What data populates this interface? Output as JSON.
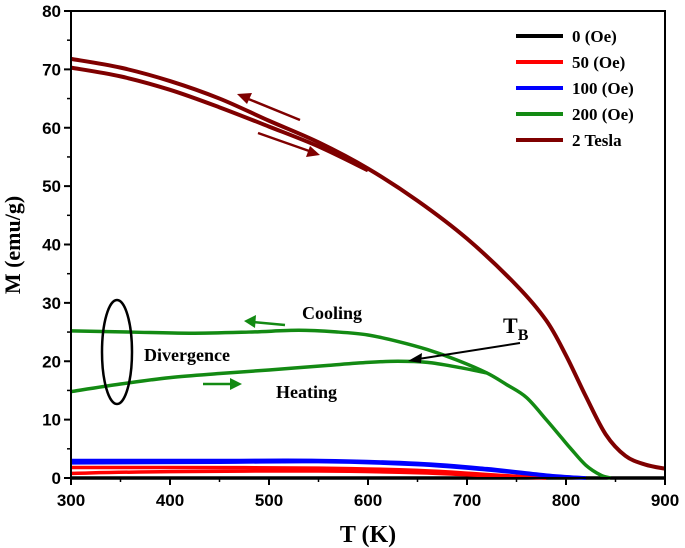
{
  "chart_data": {
    "type": "line",
    "xlabel": "T (K)",
    "ylabel": "M (emu/g)",
    "xlim": [
      300,
      900
    ],
    "ylim": [
      0,
      80
    ],
    "xticks": [
      300,
      400,
      500,
      600,
      700,
      800,
      900
    ],
    "yticks": [
      0,
      10,
      20,
      30,
      40,
      50,
      60,
      70,
      80
    ],
    "grid": false,
    "legend_position": "top-right",
    "series": [
      {
        "name": "0 (Oe)",
        "color": "#000000",
        "curves": [
          {
            "x": [
              300,
              900
            ],
            "y": [
              0,
              0
            ]
          }
        ]
      },
      {
        "name": "50 (Oe)",
        "color": "#ff0000",
        "curves": [
          {
            "x": [
              300,
              400,
              550,
              650,
              720,
              780
            ],
            "y": [
              1.8,
              1.8,
              1.7,
              1.3,
              0.6,
              0
            ]
          },
          {
            "x": [
              300,
              400,
              550,
              650,
              720,
              780
            ],
            "y": [
              0.8,
              1.1,
              1.2,
              0.9,
              0.4,
              0
            ]
          }
        ]
      },
      {
        "name": "100 (Oe)",
        "color": "#0000ff",
        "curves": [
          {
            "x": [
              300,
              450,
              550,
              650,
              720,
              780,
              820
            ],
            "y": [
              3.0,
              3.0,
              3.0,
              2.5,
              1.6,
              0.5,
              0
            ]
          },
          {
            "x": [
              300,
              450,
              550,
              650,
              720,
              780,
              820
            ],
            "y": [
              2.6,
              2.7,
              2.8,
              2.3,
              1.4,
              0.4,
              0
            ]
          }
        ]
      },
      {
        "name": "200 (Oe)",
        "color": "#138a13",
        "curves": [
          {
            "x": [
              300,
              360,
              420,
              480,
              530,
              570,
              600,
              630,
              660,
              690,
              720,
              740,
              760,
              780,
              795,
              805,
              820,
              835,
              845
            ],
            "y": [
              25.2,
              25.0,
              24.8,
              25.0,
              25.3,
              25.0,
              24.5,
              23.4,
              22.0,
              20.2,
              18.0,
              16.0,
              13.8,
              10.0,
              7.0,
              5.0,
              2.2,
              0.5,
              0
            ]
          },
          {
            "x": [
              300,
              350,
              400,
              450,
              500,
              560,
              600,
              630,
              660,
              690,
              720
            ],
            "y": [
              14.8,
              16.1,
              17.2,
              17.9,
              18.5,
              19.3,
              19.8,
              20.0,
              19.8,
              19.0,
              18.0
            ]
          }
        ]
      },
      {
        "name": "2 Tesla",
        "color": "#7f0000",
        "curves": [
          {
            "x": [
              300,
              350,
              400,
              450,
              500,
              550,
              600,
              650,
              700,
              750,
              780,
              800,
              820,
              840,
              860,
              880,
              900
            ],
            "y": [
              71.8,
              70.3,
              68.0,
              65.0,
              61.2,
              57.5,
              53.0,
              47.5,
              41.0,
              33.0,
              27.0,
              21.0,
              14.0,
              7.5,
              3.8,
              2.3,
              1.6
            ]
          },
          {
            "x": [
              300,
              350,
              400,
              450,
              500,
              550,
              600
            ],
            "y": [
              70.3,
              68.8,
              66.5,
              63.5,
              60.2,
              56.8,
              52.7
            ]
          }
        ]
      }
    ],
    "annotations": {
      "cooling": "Cooling",
      "heating": "Heating",
      "divergence": "Divergence",
      "tb": "T",
      "tb_sub": "B"
    }
  }
}
